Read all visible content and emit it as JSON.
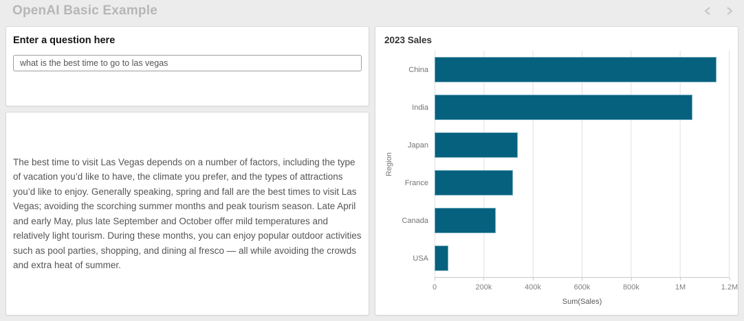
{
  "header": {
    "title": "OpenAI Basic Example"
  },
  "question_panel": {
    "title": "Enter a question here",
    "input_value": "what is the best time to go to las vegas"
  },
  "answer_panel": {
    "text": "The best time to visit Las Vegas depends on a number of factors, including the type of vacation you’d like to have, the climate you prefer, and the types of attractions you’d like to enjoy. Generally speaking, spring and fall are the best times to visit Las Vegas; avoiding the scorching summer months and peak tourism season. Late April and early May, plus late September and October offer mild temperatures and relatively light tourism. During these months, you can enjoy popular outdoor activities such as pool parties, shopping, and dining al fresco — all while avoiding the crowds and extra heat of summer."
  },
  "chart_data": {
    "type": "bar",
    "orientation": "horizontal",
    "title": "2023 Sales",
    "categories": [
      "China",
      "India",
      "Japan",
      "France",
      "Canada",
      "USA"
    ],
    "values": [
      1150000,
      1050000,
      340000,
      320000,
      250000,
      55000
    ],
    "xlabel": "Sum(Sales)",
    "ylabel": "Region",
    "xlim": [
      0,
      1200000
    ],
    "x_ticks": [
      "0",
      "200k",
      "400k",
      "600k",
      "800k",
      "1M",
      "1.2M"
    ],
    "grid": true,
    "legend": "none",
    "bar_color": "#06617e",
    "bar_border_color": "#70a9bd"
  }
}
